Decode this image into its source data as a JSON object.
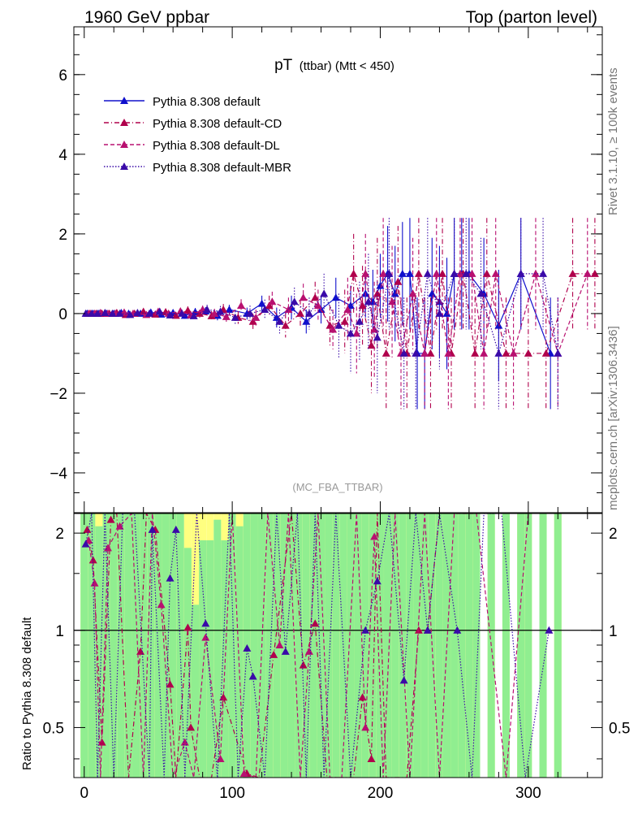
{
  "header": {
    "left": "1960 GeV ppbar",
    "right": "Top (parton level)"
  },
  "side_labels": {
    "rivet": "Rivet 3.1.10, ≥ 100k events",
    "mcplots": "mcplots.cern.ch [arXiv:1306.3436]"
  },
  "watermark": "(MC_FBA_TTBAR)",
  "ratio_ylabel": "Ratio to Pythia 8.308 default",
  "colors": {
    "default": "#1010cc",
    "cd": "#b0004c",
    "dl": "#b81070",
    "mbr": "#3a0aa8",
    "band_green": "#90ee90",
    "band_yellow": "#ffff80"
  },
  "chart_data": [
    {
      "type": "line",
      "title_main": "pT",
      "title_sub": "(ttbar) (Mtt < 450)",
      "xlim": [
        -7,
        350
      ],
      "ylim": [
        -5,
        7.2
      ],
      "yticks": [
        -4,
        -2,
        0,
        2,
        4,
        6
      ],
      "ytick_labels": [
        "−4",
        "−2",
        "0",
        "2",
        "4",
        "6"
      ],
      "legend_position": "top-left",
      "series": [
        {
          "name": "Pythia 8.308 default",
          "style": "solid",
          "color_key": "default",
          "x": [
            2,
            6,
            10,
            15,
            20,
            25,
            30,
            38,
            45,
            52,
            60,
            68,
            75,
            82,
            90,
            98,
            110,
            120,
            130,
            140,
            150,
            160,
            170,
            180,
            190,
            195,
            200,
            205,
            210,
            215,
            220,
            225,
            230,
            235,
            240,
            245,
            250,
            255,
            260,
            270,
            280,
            295,
            315
          ],
          "y": [
            0,
            0,
            0,
            0,
            0,
            0.02,
            0,
            0,
            0.03,
            -0.02,
            0.02,
            -0.05,
            0.04,
            0.06,
            -0.05,
            0.1,
            0,
            0.25,
            -0.1,
            0.15,
            -0.2,
            0.1,
            0.4,
            0.2,
            0.5,
            0.3,
            0.7,
            1,
            0.5,
            1,
            1,
            -1,
            -1,
            0.5,
            0.3,
            0,
            1,
            1,
            1,
            0.5,
            -0.3,
            1,
            -1
          ],
          "err": [
            0.03,
            0.03,
            0.04,
            0.04,
            0.05,
            0.05,
            0.06,
            0.06,
            0.07,
            0.07,
            0.08,
            0.08,
            0.1,
            0.1,
            0.12,
            0.12,
            0.15,
            0.2,
            0.25,
            0.3,
            0.3,
            0.35,
            0.5,
            0.5,
            0.6,
            0.8,
            0.8,
            1.2,
            1.2,
            1.3,
            1.4,
            1.4,
            1.4,
            1.4,
            1.4,
            1.4,
            1.4,
            1.4,
            1.4,
            1.4,
            1.4,
            1.4,
            1.4
          ]
        },
        {
          "name": "Pythia 8.308 default-CD",
          "style": "dashdot",
          "color_key": "cd",
          "x": [
            4,
            8,
            12,
            17,
            22,
            28,
            34,
            40,
            48,
            55,
            62,
            70,
            78,
            86,
            94,
            104,
            114,
            125,
            136,
            146,
            156,
            166,
            176,
            182,
            188,
            194,
            198,
            204,
            212,
            218,
            226,
            234,
            242,
            248,
            256,
            264,
            272,
            285,
            300,
            312,
            330,
            345
          ],
          "y": [
            0,
            0,
            0,
            0,
            0.02,
            -0.03,
            0,
            0.05,
            -0.02,
            0.04,
            -0.05,
            0.08,
            0,
            -0.06,
            0.1,
            -0.1,
            -0.2,
            0.2,
            -0.3,
            0,
            0.4,
            -0.3,
            -0.2,
            1,
            0.2,
            -0.8,
            0.5,
            -1,
            0.8,
            -1,
            1,
            -1,
            1,
            -1,
            1,
            -1,
            1,
            -1,
            -1,
            -1,
            1,
            1
          ],
          "err": [
            0.03,
            0.03,
            0.04,
            0.04,
            0.05,
            0.05,
            0.06,
            0.06,
            0.07,
            0.08,
            0.08,
            0.1,
            0.1,
            0.12,
            0.14,
            0.16,
            0.2,
            0.25,
            0.3,
            0.35,
            0.4,
            0.5,
            0.8,
            1,
            1,
            1.2,
            1.4,
            1.4,
            1.4,
            1.4,
            1.4,
            1.4,
            1.4,
            1.4,
            1.4,
            1.4,
            1.4,
            1.4,
            1.4,
            1.4,
            1.4,
            1.4
          ]
        },
        {
          "name": "Pythia 8.308 default-DL",
          "style": "dashed",
          "color_key": "dl",
          "x": [
            3,
            7,
            11,
            16,
            21,
            27,
            33,
            42,
            50,
            57,
            65,
            72,
            80,
            88,
            96,
            106,
            116,
            127,
            138,
            148,
            158,
            168,
            178,
            184,
            190,
            196,
            202,
            208,
            214,
            222,
            230,
            238,
            246,
            254,
            262,
            270,
            278,
            290,
            305,
            320,
            340
          ],
          "y": [
            0,
            0,
            0.02,
            0,
            0,
            0.03,
            0,
            -0.03,
            0.05,
            0,
            0.06,
            -0.04,
            0.1,
            0,
            -0.08,
            0.2,
            -0.1,
            0.3,
            0.1,
            0.4,
            0.2,
            -0.4,
            0.1,
            -0.5,
            1,
            -0.4,
            1,
            0.3,
            -1,
            0.5,
            -1,
            1,
            -1,
            1,
            1,
            -1,
            1,
            -1,
            1,
            -1,
            1
          ],
          "err": [
            0.03,
            0.03,
            0.04,
            0.04,
            0.05,
            0.05,
            0.06,
            0.06,
            0.07,
            0.08,
            0.08,
            0.1,
            0.1,
            0.12,
            0.14,
            0.16,
            0.2,
            0.25,
            0.3,
            0.35,
            0.4,
            0.5,
            0.8,
            1,
            1,
            1.2,
            1.4,
            1.4,
            1.4,
            1.4,
            1.4,
            1.4,
            1.4,
            1.4,
            1.4,
            1.4,
            1.4,
            1.4,
            1.4,
            1.4,
            1.4
          ]
        },
        {
          "name": "Pythia 8.308 default-MBR",
          "style": "dotted",
          "color_key": "mbr",
          "x": [
            1,
            5,
            9,
            14,
            19,
            24,
            31,
            36,
            44,
            51,
            58,
            66,
            74,
            83,
            92,
            102,
            112,
            122,
            132,
            142,
            152,
            162,
            172,
            180,
            186,
            192,
            198,
            206,
            216,
            224,
            232,
            240,
            250,
            258,
            268,
            280,
            295,
            310,
            320
          ],
          "y": [
            0,
            0,
            0,
            0.02,
            0,
            0,
            -0.03,
            0.02,
            0,
            0.05,
            -0.04,
            0,
            -0.06,
            0.1,
            0.05,
            -0.1,
            0,
            0.1,
            -0.2,
            0.3,
            0,
            0.5,
            -0.3,
            -0.5,
            -0.2,
            0.3,
            -0.6,
            1,
            -1,
            -1,
            1,
            0,
            1,
            1,
            0.5,
            -1,
            1,
            1,
            -1
          ],
          "err": [
            0.03,
            0.03,
            0.04,
            0.04,
            0.05,
            0.05,
            0.06,
            0.06,
            0.07,
            0.08,
            0.08,
            0.1,
            0.1,
            0.12,
            0.14,
            0.16,
            0.2,
            0.25,
            0.3,
            0.35,
            0.4,
            0.5,
            0.8,
            1,
            1,
            1.2,
            1.4,
            1.4,
            1.4,
            1.4,
            1.4,
            1.4,
            1.4,
            1.4,
            1.4,
            1.4,
            1.4,
            1.4,
            1.4
          ]
        }
      ]
    },
    {
      "type": "line",
      "yscale": "log",
      "xlim": [
        -7,
        350
      ],
      "ylim": [
        0.35,
        2.3
      ],
      "yticks": [
        0.5,
        1,
        2
      ],
      "ytick_labels": [
        "0.5",
        "1",
        "2"
      ],
      "xticks": [
        0,
        100,
        200,
        300
      ],
      "xtick_labels": [
        "0",
        "100",
        "200",
        "300"
      ],
      "reference_line": 1,
      "band_x": [
        0,
        5,
        10,
        15,
        20,
        25,
        30,
        35,
        40,
        45,
        50,
        55,
        60,
        65,
        70,
        75,
        80,
        85,
        90,
        95,
        100,
        105,
        110,
        115,
        120,
        125,
        130,
        135,
        140,
        145,
        150,
        155,
        160,
        165,
        170,
        175,
        180,
        185,
        190,
        195,
        200,
        205,
        210,
        215,
        220,
        225,
        230,
        235,
        240,
        245,
        250,
        255,
        260,
        265,
        270,
        275,
        280,
        285,
        290,
        295,
        300,
        305,
        310,
        315,
        320,
        325
      ],
      "band_green": [
        2.3,
        2.3,
        2.1,
        2.3,
        2.3,
        2.3,
        2.3,
        2.3,
        2.3,
        2.3,
        2.3,
        2.3,
        2.3,
        2.3,
        1.8,
        1.2,
        1.9,
        1.9,
        2.2,
        1.9,
        2.3,
        2.1,
        2.3,
        2.3,
        2.3,
        2.3,
        2.3,
        2.3,
        2.3,
        2.3,
        2.3,
        2.3,
        2.3,
        2.3,
        2.3,
        2.3,
        2.3,
        2.3,
        2.3,
        2.3,
        2.3,
        2.3,
        2.3,
        2.3,
        2.3,
        2.3,
        2.3,
        2.3,
        2.3,
        2.3,
        2.3,
        2.3,
        2.3,
        2.3,
        2.3,
        2.3,
        2.3,
        2.3,
        2.3,
        2.3,
        2.3,
        2.3,
        2.3,
        2.3,
        2.3,
        2.3
      ],
      "band_yellow": [
        2.3,
        2.3,
        2.3,
        2.3,
        2.3,
        2.3,
        2.3,
        2.3,
        2.3,
        2.3,
        2.3,
        2.3,
        2.3,
        2.3,
        2.3,
        2.3,
        2.3,
        2.3,
        2.3,
        2.3,
        2.3,
        2.3,
        2.3,
        2.3,
        2.3,
        2.3,
        2.3,
        2.3,
        2.3,
        2.3,
        2.3,
        2.3,
        2.3,
        2.3,
        2.3,
        2.3,
        2.3,
        2.3,
        2.3,
        2.3,
        2.3,
        2.3,
        2.3,
        2.3,
        2.3,
        2.3,
        2.3,
        2.3,
        2.3,
        2.3,
        2.3,
        2.3,
        2.3,
        2.3,
        2.3,
        2.3,
        2.3,
        2.3,
        2.3,
        2.3,
        2.3,
        2.3,
        2.3,
        2.3,
        2.3,
        2.3
      ],
      "band_present": [
        1,
        1,
        1,
        1,
        1,
        1,
        1,
        1,
        1,
        1,
        1,
        1,
        1,
        1,
        1,
        1,
        1,
        1,
        1,
        1,
        1,
        1,
        1,
        1,
        1,
        1,
        1,
        1,
        1,
        1,
        1,
        1,
        1,
        1,
        1,
        1,
        1,
        1,
        1,
        1,
        1,
        1,
        1,
        1,
        1,
        1,
        1,
        1,
        1,
        1,
        1,
        1,
        1,
        1,
        0,
        1,
        0,
        1,
        0,
        1,
        1,
        0,
        1,
        0,
        1,
        0
      ],
      "series": [
        {
          "name": "Pythia 8.308 default-CD",
          "style": "dashdot",
          "color_key": "cd",
          "x": [
            2,
            6,
            12,
            18,
            22,
            30,
            38,
            42,
            48,
            58,
            62,
            70,
            72,
            78,
            86,
            94,
            110,
            118,
            128,
            140,
            148,
            156,
            164,
            170,
            178,
            182,
            188,
            194,
            198,
            204,
            212,
            218,
            226,
            232,
            240
          ],
          "y": [
            2.05,
            1.65,
            0.45,
            2.2,
            2.3,
            0.35,
            0.86,
            2.3,
            2.05,
            0.68,
            0.35,
            1.02,
            0.5,
            0.35,
            0.35,
            0.62,
            0.36,
            0.35,
            0.84,
            2.3,
            0.78,
            1.05,
            0.35,
            0.35,
            0.35,
            0.35,
            0.62,
            0.4,
            2.3,
            0.35,
            0.35,
            0.35,
            1.0,
            1.0,
            2.3
          ]
        },
        {
          "name": "Pythia 8.308 default-DL",
          "style": "dashed",
          "color_key": "dl",
          "x": [
            3,
            7,
            11,
            16,
            24,
            32,
            40,
            46,
            52,
            60,
            68,
            74,
            82,
            92,
            100,
            108,
            116,
            124,
            132,
            138,
            146,
            152,
            158,
            166,
            174,
            184,
            190,
            196,
            202,
            210,
            220,
            230,
            240,
            250,
            265,
            285,
            300
          ],
          "y": [
            1.9,
            1.4,
            0.35,
            1.8,
            2.1,
            2.3,
            0.35,
            2.3,
            1.2,
            0.35,
            0.45,
            0.35,
            0.95,
            0.4,
            2.3,
            0.36,
            0.35,
            2.3,
            0.9,
            2.3,
            0.35,
            0.86,
            2.3,
            0.35,
            0.35,
            2.3,
            0.5,
            1.95,
            0.35,
            2.3,
            0.35,
            2.3,
            0.35,
            2.3,
            2.3,
            0.35,
            2.3
          ]
        },
        {
          "name": "Pythia 8.308 default-MBR",
          "style": "dotted",
          "color_key": "mbr",
          "x": [
            1,
            5,
            9,
            14,
            20,
            26,
            34,
            44,
            46,
            54,
            58,
            62,
            68,
            76,
            82,
            90,
            98,
            104,
            110,
            114,
            122,
            130,
            136,
            144,
            150,
            156,
            162,
            170,
            180,
            190,
            198,
            206,
            216,
            224,
            232,
            240,
            252,
            262,
            270,
            282,
            298,
            314
          ],
          "y": [
            1.85,
            2.3,
            0.35,
            2.3,
            0.35,
            2.3,
            2.3,
            0.35,
            2.05,
            0.35,
            1.45,
            2.05,
            0.35,
            2.3,
            1.05,
            0.35,
            2.3,
            0.35,
            0.88,
            0.72,
            0.35,
            2.3,
            0.86,
            2.3,
            0.34,
            2.3,
            0.35,
            2.3,
            0.35,
            1.0,
            1.42,
            2.3,
            0.7,
            2.3,
            1.0,
            2.3,
            1.0,
            0.35,
            2.3,
            2.3,
            0.35,
            1.0
          ]
        }
      ]
    }
  ]
}
